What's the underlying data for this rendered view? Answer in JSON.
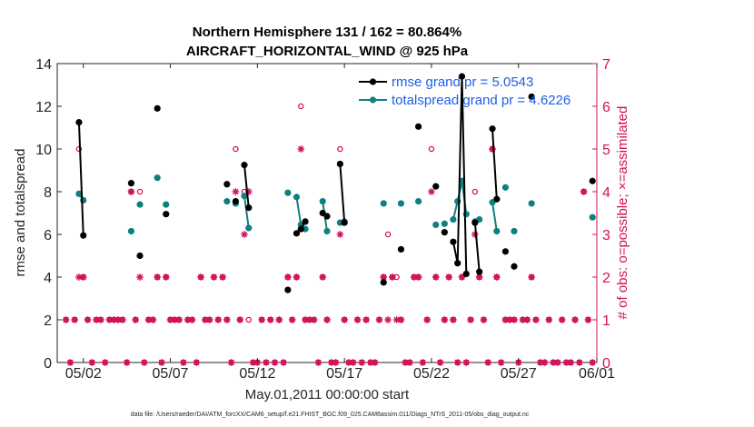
{
  "chart_data": {
    "type": "line",
    "title_line1": "Northern Hemisphere 131 / 162 = 80.864%",
    "title_line2": "AIRCRAFT_HORIZONTAL_WIND @ 925 hPa",
    "xlabel": "May.01,2011 00:00:00 start",
    "ylabel_left": "rmse and totalspread",
    "ylabel_right": "# of obs: o=possible; ×=assimilated",
    "footer": "data file: /Users/raeder/DAI/ATM_forcXX/CAM6_setup/f.e21.FHIST_BGC.f09_025.CAM6assim.011/Diags_NTrS_2011-05/obs_diag_output.nc",
    "xlim": [
      0.5,
      31.5
    ],
    "ylim_left": [
      0,
      14
    ],
    "ylim_right": [
      0,
      7
    ],
    "x_ticks": [
      {
        "x": 2,
        "label": "05/02"
      },
      {
        "x": 7,
        "label": "05/07"
      },
      {
        "x": 12,
        "label": "05/12"
      },
      {
        "x": 17,
        "label": "05/17"
      },
      {
        "x": 22,
        "label": "05/22"
      },
      {
        "x": 27,
        "label": "05/27"
      },
      {
        "x": 32,
        "label": "06/01"
      }
    ],
    "y_left_ticks": [
      0,
      2,
      4,
      6,
      8,
      10,
      12,
      14
    ],
    "y_right_ticks": [
      0,
      1,
      2,
      3,
      4,
      5,
      6,
      7
    ],
    "colors": {
      "rmse": "#000000",
      "spread": "#0e8080",
      "obs": "#d2105a",
      "legend_text": "#1f5ee6",
      "axis": "#262626"
    },
    "legend": [
      {
        "name": "rmse grand pr = 5.0543",
        "series": "rmse"
      },
      {
        "name": "totalspread grand pr = 4.6226",
        "series": "spread"
      }
    ],
    "series": [
      {
        "name": "rmse",
        "segments": [
          [
            [
              1.75,
              11.25
            ],
            [
              2.0,
              5.95
            ]
          ],
          [
            [
              4.75,
              8.4
            ]
          ],
          [
            [
              5.25,
              5.0
            ]
          ],
          [
            [
              6.25,
              11.9
            ]
          ],
          [
            [
              6.75,
              6.95
            ]
          ],
          [
            [
              10.25,
              8.35
            ]
          ],
          [
            [
              10.75,
              7.55
            ]
          ],
          [
            [
              11.25,
              9.25
            ],
            [
              11.5,
              7.25
            ]
          ],
          [
            [
              13.75,
              3.4
            ]
          ],
          [
            [
              14.25,
              6.05
            ],
            [
              14.5,
              6.25
            ],
            [
              14.75,
              6.6
            ]
          ],
          [
            [
              15.75,
              7.0
            ],
            [
              16.0,
              6.85
            ]
          ],
          [
            [
              16.75,
              9.3
            ],
            [
              17.0,
              6.55
            ]
          ],
          [
            [
              19.25,
              3.75
            ]
          ],
          [
            [
              20.25,
              5.3
            ]
          ],
          [
            [
              21.25,
              11.05
            ]
          ],
          [
            [
              22.25,
              8.25
            ]
          ],
          [
            [
              22.75,
              6.1
            ]
          ],
          [
            [
              23.25,
              5.65
            ],
            [
              23.5,
              4.65
            ],
            [
              23.75,
              13.4
            ],
            [
              24.0,
              4.15
            ]
          ],
          [
            [
              24.5,
              6.55
            ],
            [
              24.75,
              4.25
            ]
          ],
          [
            [
              25.5,
              10.95
            ],
            [
              25.75,
              7.65
            ]
          ],
          [
            [
              26.25,
              5.2
            ]
          ],
          [
            [
              26.75,
              4.5
            ]
          ],
          [
            [
              27.75,
              12.45
            ]
          ],
          [
            [
              31.25,
              8.5
            ]
          ]
        ]
      },
      {
        "name": "totalspread",
        "segments": [
          [
            [
              1.75,
              7.9
            ],
            [
              2.0,
              7.6
            ]
          ],
          [
            [
              4.75,
              6.15
            ]
          ],
          [
            [
              5.25,
              7.4
            ]
          ],
          [
            [
              6.25,
              8.65
            ]
          ],
          [
            [
              6.75,
              7.4
            ]
          ],
          [
            [
              10.25,
              7.55
            ]
          ],
          [
            [
              10.75,
              7.45
            ]
          ],
          [
            [
              11.25,
              7.8
            ],
            [
              11.5,
              6.3
            ]
          ],
          [
            [
              13.75,
              7.95
            ]
          ],
          [
            [
              14.25,
              7.75
            ],
            [
              14.5,
              6.45
            ],
            [
              14.75,
              6.25
            ]
          ],
          [
            [
              15.75,
              7.55
            ],
            [
              16.0,
              6.15
            ]
          ],
          [
            [
              16.75,
              6.55
            ],
            [
              17.0,
              6.6
            ]
          ],
          [
            [
              19.25,
              7.45
            ]
          ],
          [
            [
              20.25,
              7.45
            ]
          ],
          [
            [
              21.25,
              7.55
            ]
          ],
          [
            [
              22.25,
              6.45
            ]
          ],
          [
            [
              22.75,
              6.5
            ]
          ],
          [
            [
              23.25,
              6.7
            ],
            [
              23.5,
              7.55
            ],
            [
              23.75,
              8.5
            ],
            [
              24.0,
              6.95
            ]
          ],
          [
            [
              24.5,
              6.6
            ],
            [
              24.75,
              6.7
            ]
          ],
          [
            [
              25.5,
              7.5
            ],
            [
              25.75,
              6.15
            ]
          ],
          [
            [
              26.25,
              8.2
            ]
          ],
          [
            [
              26.75,
              6.15
            ]
          ],
          [
            [
              27.75,
              7.45
            ]
          ],
          [
            [
              31.25,
              6.8
            ]
          ]
        ]
      }
    ],
    "obs_possible": [
      [
        1,
        1
      ],
      [
        1.25,
        0
      ],
      [
        1.5,
        1
      ],
      [
        1.75,
        5
      ],
      [
        2,
        2
      ],
      [
        2.25,
        1
      ],
      [
        2.5,
        0
      ],
      [
        2.75,
        1
      ],
      [
        3,
        1
      ],
      [
        3.25,
        0
      ],
      [
        3.5,
        1
      ],
      [
        3.75,
        1
      ],
      [
        4,
        1
      ],
      [
        4.25,
        1
      ],
      [
        4.5,
        0
      ],
      [
        4.75,
        4
      ],
      [
        5,
        1
      ],
      [
        5.25,
        4
      ],
      [
        5.5,
        0
      ],
      [
        5.75,
        1
      ],
      [
        6,
        1
      ],
      [
        6.25,
        2
      ],
      [
        6.5,
        0
      ],
      [
        6.75,
        2
      ],
      [
        7,
        1
      ],
      [
        7.25,
        1
      ],
      [
        7.5,
        1
      ],
      [
        7.75,
        0
      ],
      [
        8,
        1
      ],
      [
        8.25,
        1
      ],
      [
        8.5,
        0
      ],
      [
        8.75,
        2
      ],
      [
        9,
        1
      ],
      [
        9.25,
        1
      ],
      [
        9.5,
        2
      ],
      [
        9.75,
        1
      ],
      [
        10,
        2
      ],
      [
        10.25,
        1
      ],
      [
        10.5,
        0
      ],
      [
        10.75,
        5
      ],
      [
        11,
        1
      ],
      [
        11.25,
        4
      ],
      [
        11.5,
        1
      ],
      [
        11.75,
        0
      ],
      [
        12,
        0
      ],
      [
        12.25,
        1
      ],
      [
        12.5,
        0
      ],
      [
        12.75,
        1
      ],
      [
        13,
        0
      ],
      [
        13.25,
        1
      ],
      [
        13.5,
        0
      ],
      [
        13.75,
        2
      ],
      [
        14,
        1
      ],
      [
        14.25,
        2
      ],
      [
        14.5,
        6
      ],
      [
        14.75,
        1
      ],
      [
        15,
        1
      ],
      [
        15.25,
        1
      ],
      [
        15.5,
        0
      ],
      [
        15.75,
        2
      ],
      [
        16,
        1
      ],
      [
        16.25,
        0
      ],
      [
        16.5,
        0
      ],
      [
        16.75,
        5
      ],
      [
        17,
        1
      ],
      [
        17.25,
        0
      ],
      [
        17.5,
        0
      ],
      [
        17.75,
        1
      ],
      [
        18,
        0
      ],
      [
        18.25,
        1
      ],
      [
        18.5,
        0
      ],
      [
        18.75,
        0
      ],
      [
        19,
        1
      ],
      [
        19.25,
        2
      ],
      [
        19.5,
        3
      ],
      [
        19.75,
        2
      ],
      [
        20,
        2
      ],
      [
        20.25,
        1
      ],
      [
        20.5,
        0
      ],
      [
        20.75,
        0
      ],
      [
        21,
        2
      ],
      [
        21.25,
        2
      ],
      [
        21.5,
        0
      ],
      [
        21.75,
        1
      ],
      [
        22,
        5
      ],
      [
        22.25,
        2
      ],
      [
        22.5,
        0
      ],
      [
        22.75,
        1
      ],
      [
        23,
        2
      ],
      [
        23.25,
        1
      ],
      [
        23.5,
        0
      ],
      [
        23.75,
        2
      ],
      [
        24,
        0
      ],
      [
        24.25,
        1
      ],
      [
        24.5,
        4
      ],
      [
        24.75,
        2
      ],
      [
        25,
        1
      ],
      [
        25.25,
        0
      ],
      [
        25.5,
        5
      ],
      [
        25.75,
        2
      ],
      [
        26,
        0
      ],
      [
        26.25,
        1
      ],
      [
        26.5,
        1
      ],
      [
        26.75,
        1
      ],
      [
        27,
        0
      ],
      [
        27.25,
        1
      ],
      [
        27.5,
        1
      ],
      [
        27.75,
        2
      ],
      [
        28,
        1
      ],
      [
        28.25,
        0
      ],
      [
        28.5,
        0
      ],
      [
        28.75,
        1
      ],
      [
        29,
        0
      ],
      [
        29.25,
        0
      ],
      [
        29.5,
        1
      ],
      [
        29.75,
        0
      ],
      [
        30,
        0
      ],
      [
        30.25,
        1
      ],
      [
        30.5,
        0
      ],
      [
        30.75,
        4
      ],
      [
        31,
        1
      ],
      [
        31.25,
        0
      ]
    ],
    "obs_assimilated": [
      [
        1,
        1
      ],
      [
        1.25,
        0
      ],
      [
        1.5,
        1
      ],
      [
        1.75,
        2
      ],
      [
        2,
        2
      ],
      [
        2.25,
        1
      ],
      [
        2.5,
        0
      ],
      [
        2.75,
        1
      ],
      [
        3,
        1
      ],
      [
        3.25,
        0
      ],
      [
        3.5,
        1
      ],
      [
        3.75,
        1
      ],
      [
        4,
        1
      ],
      [
        4.25,
        1
      ],
      [
        4.5,
        0
      ],
      [
        4.75,
        4
      ],
      [
        5,
        1
      ],
      [
        5.25,
        2
      ],
      [
        5.5,
        0
      ],
      [
        5.75,
        1
      ],
      [
        6,
        1
      ],
      [
        6.25,
        2
      ],
      [
        6.5,
        0
      ],
      [
        6.75,
        2
      ],
      [
        7,
        1
      ],
      [
        7.25,
        1
      ],
      [
        7.5,
        1
      ],
      [
        7.75,
        0
      ],
      [
        8,
        1
      ],
      [
        8.25,
        1
      ],
      [
        8.5,
        0
      ],
      [
        8.75,
        2
      ],
      [
        9,
        1
      ],
      [
        9.25,
        1
      ],
      [
        9.5,
        2
      ],
      [
        9.75,
        1
      ],
      [
        10,
        2
      ],
      [
        10.25,
        1
      ],
      [
        10.5,
        0
      ],
      [
        10.75,
        4
      ],
      [
        11,
        1
      ],
      [
        11.25,
        3
      ],
      [
        11.5,
        4
      ],
      [
        11.75,
        0
      ],
      [
        12,
        0
      ],
      [
        12.25,
        1
      ],
      [
        12.5,
        0
      ],
      [
        12.75,
        1
      ],
      [
        13,
        0
      ],
      [
        13.25,
        1
      ],
      [
        13.5,
        0
      ],
      [
        13.75,
        2
      ],
      [
        14,
        1
      ],
      [
        14.25,
        2
      ],
      [
        14.5,
        5
      ],
      [
        14.75,
        1
      ],
      [
        15,
        1
      ],
      [
        15.25,
        1
      ],
      [
        15.5,
        0
      ],
      [
        15.75,
        2
      ],
      [
        16,
        1
      ],
      [
        16.25,
        0
      ],
      [
        16.5,
        0
      ],
      [
        16.75,
        3
      ],
      [
        17,
        1
      ],
      [
        17.25,
        0
      ],
      [
        17.5,
        0
      ],
      [
        17.75,
        1
      ],
      [
        18,
        0
      ],
      [
        18.25,
        1
      ],
      [
        18.5,
        0
      ],
      [
        18.75,
        0
      ],
      [
        19,
        1
      ],
      [
        19.25,
        2
      ],
      [
        19.5,
        1
      ],
      [
        19.75,
        2
      ],
      [
        20,
        1
      ],
      [
        20.25,
        1
      ],
      [
        20.5,
        0
      ],
      [
        20.75,
        0
      ],
      [
        21,
        2
      ],
      [
        21.25,
        2
      ],
      [
        21.5,
        0
      ],
      [
        21.75,
        1
      ],
      [
        22,
        4
      ],
      [
        22.25,
        2
      ],
      [
        22.5,
        0
      ],
      [
        22.75,
        1
      ],
      [
        23,
        2
      ],
      [
        23.25,
        1
      ],
      [
        23.5,
        0
      ],
      [
        23.75,
        2
      ],
      [
        24,
        0
      ],
      [
        24.25,
        1
      ],
      [
        24.5,
        3
      ],
      [
        24.75,
        2
      ],
      [
        25,
        1
      ],
      [
        25.25,
        0
      ],
      [
        25.5,
        5
      ],
      [
        25.75,
        2
      ],
      [
        26,
        0
      ],
      [
        26.25,
        1
      ],
      [
        26.5,
        1
      ],
      [
        26.75,
        1
      ],
      [
        27,
        0
      ],
      [
        27.25,
        1
      ],
      [
        27.5,
        1
      ],
      [
        27.75,
        2
      ],
      [
        28,
        1
      ],
      [
        28.25,
        0
      ],
      [
        28.5,
        0
      ],
      [
        28.75,
        1
      ],
      [
        29,
        0
      ],
      [
        29.25,
        0
      ],
      [
        29.5,
        1
      ],
      [
        29.75,
        0
      ],
      [
        30,
        0
      ],
      [
        30.25,
        1
      ],
      [
        30.5,
        0
      ],
      [
        30.75,
        4
      ],
      [
        31,
        1
      ],
      [
        31.25,
        0
      ]
    ]
  }
}
